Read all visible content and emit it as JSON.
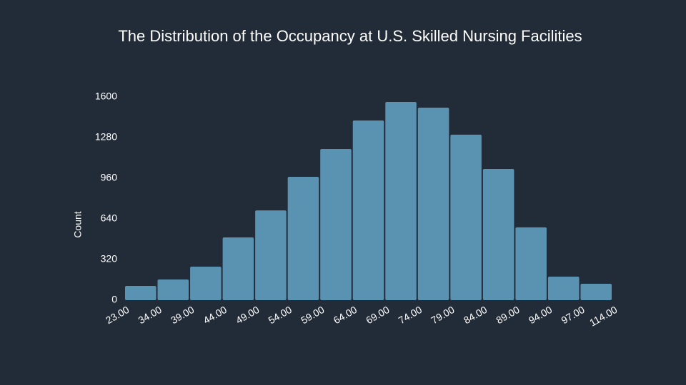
{
  "chart_data": {
    "type": "histogram",
    "title": "The Distribution of the Occupancy at U.S. Skilled Nursing Facilities",
    "y_label": "Count",
    "bins": [
      {
        "value": 23,
        "label": "23.00"
      },
      {
        "value": 34,
        "label": "34.00"
      },
      {
        "value": 39,
        "label": "39.00"
      },
      {
        "value": 44,
        "label": "44.00"
      },
      {
        "value": 49,
        "label": "49.00"
      },
      {
        "value": 54,
        "label": "54.00"
      },
      {
        "value": 59,
        "label": "59.00"
      },
      {
        "value": 64,
        "label": "64.00"
      },
      {
        "value": 69,
        "label": "69.00"
      },
      {
        "value": 74,
        "label": "74.00"
      },
      {
        "value": 79,
        "label": "79.00"
      },
      {
        "value": 84,
        "label": "84.00"
      },
      {
        "value": 89,
        "label": "89.00"
      },
      {
        "value": 94,
        "label": "94.00"
      },
      {
        "value": 97,
        "label": "97.00"
      },
      {
        "value": 114,
        "label": "114.00"
      }
    ],
    "values": [
      112,
      163,
      264,
      494,
      707,
      971,
      1190,
      1415,
      1561,
      1516,
      1303,
      1033,
      573,
      185,
      129
    ],
    "color": "#5a93b2",
    "ylim": [
      0,
      1600
    ],
    "yticks": [
      0,
      320,
      640,
      960,
      1280,
      1600
    ],
    "grid": false
  }
}
